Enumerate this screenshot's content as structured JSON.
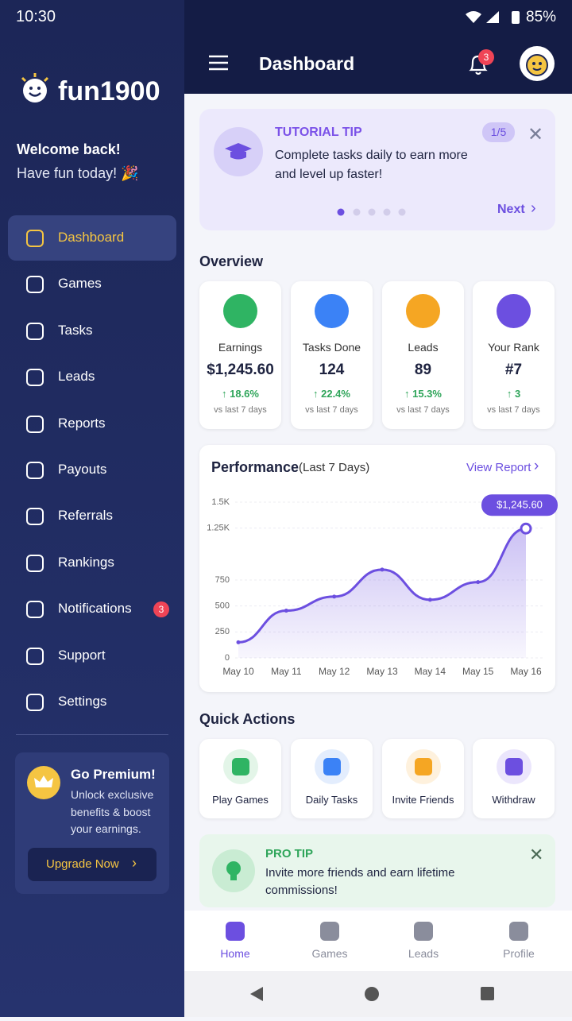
{
  "status": {
    "time": "10:30",
    "battery": "85%"
  },
  "sidebar": {
    "brand": "fun1900",
    "welcome": "Welcome back!",
    "subtitle": "Have fun today! 🎉",
    "menu": [
      "Dashboard",
      "Games",
      "Tasks",
      "Leads",
      "Reports",
      "Payouts",
      "Referrals",
      "Rankings",
      "Notifications",
      "Support",
      "Settings"
    ],
    "notifications_badge": "3",
    "premium": {
      "title": "Go Premium!",
      "text": "Unlock exclusive benefits & boost your earnings.",
      "button": "Upgrade Now"
    }
  },
  "header": {
    "title": "Dashboard",
    "badge": "3"
  },
  "tip": {
    "label": "TUTORIAL TIP",
    "text": "Complete tasks daily to earn more and level up faster!",
    "counter": "1/5",
    "next": "Next"
  },
  "overview": {
    "title": "Overview",
    "cards": [
      {
        "label": "Earnings",
        "value": "$1,245.60",
        "change": "↑ 18.6%",
        "note": "vs last 7 days"
      },
      {
        "label": "Tasks Done",
        "value": "124",
        "change": "↑ 22.4%",
        "note": "vs last 7 days"
      },
      {
        "label": "Leads",
        "value": "89",
        "change": "↑ 15.3%",
        "note": "vs last 7 days"
      },
      {
        "label": "Your Rank",
        "value": "#7",
        "change": "↑ 3",
        "note": "vs last 7 days"
      }
    ]
  },
  "chart_data": {
    "type": "line",
    "title": "Performance",
    "subtitle": "(Last 7 Days)",
    "link": "View Report",
    "categories": [
      "May 10",
      "May 11",
      "May 12",
      "May 13",
      "May 14",
      "May 15",
      "May 16"
    ],
    "values": [
      150,
      455,
      590,
      850,
      560,
      730,
      1245.6
    ],
    "value_labels": [
      null,
      null,
      null,
      null,
      null,
      null,
      "$1,245.60"
    ],
    "color": "#6c4fe0",
    "ylim": [
      0,
      1500
    ],
    "yticks": [
      0,
      250,
      500,
      750,
      {
        "value": 1250,
        "label": "1.25K"
      },
      {
        "value": 1500,
        "label": "1.5K"
      }
    ],
    "grid": true
  },
  "quick_actions": {
    "title": "Quick Actions",
    "items": [
      "Play Games",
      "Daily Tasks",
      "Invite Friends",
      "Withdraw"
    ]
  },
  "pro_tip": {
    "label": "PRO TIP",
    "text": "Invite more friends and earn lifetime commissions!"
  },
  "nav": [
    "Home",
    "Games",
    "Leads",
    "Profile"
  ]
}
